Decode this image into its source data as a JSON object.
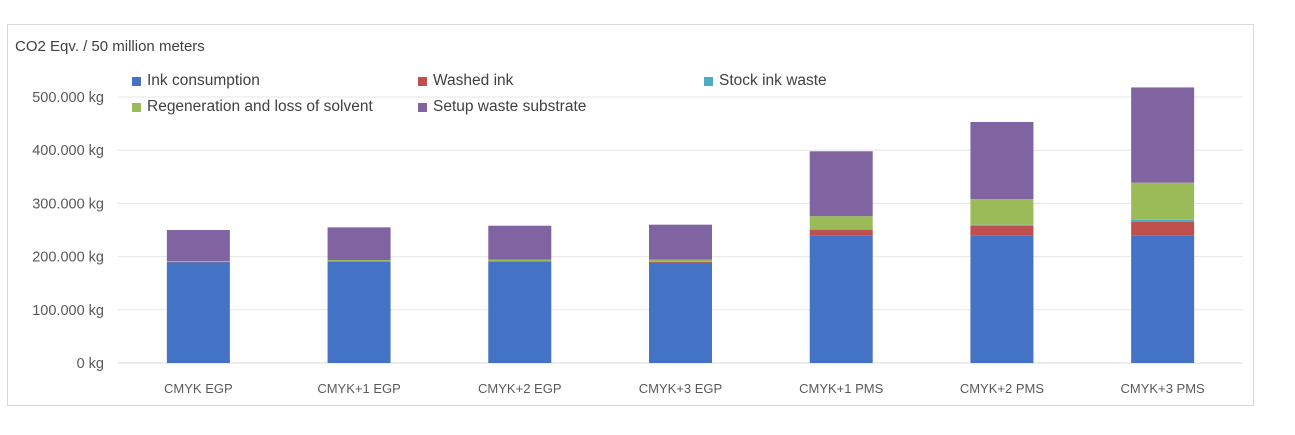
{
  "chart_data": {
    "type": "bar",
    "stacked": true,
    "ylabel": "CO2 Eqv. / 50 million meters",
    "ylim": [
      0,
      550000
    ],
    "yticks": [
      0,
      100000,
      200000,
      300000,
      400000,
      500000
    ],
    "ytick_labels": [
      "0 kg",
      "100.000 kg",
      "200.000 kg",
      "300.000 kg",
      "400.000 kg",
      "500.000 kg"
    ],
    "grid": true,
    "legend_position": "top",
    "categories": [
      "CMYK EGP",
      "CMYK+1 EGP",
      "CMYK+2 EGP",
      "CMYK+3 EGP",
      "CMYK+1 PMS",
      "CMYK+2 PMS",
      "CMYK+3 PMS"
    ],
    "series": [
      {
        "name": "Ink consumption",
        "color": "#4472c4",
        "values": [
          189000,
          190000,
          190000,
          188000,
          240000,
          240000,
          240000
        ]
      },
      {
        "name": "Washed ink",
        "color": "#c0504d",
        "values": [
          1000,
          1000,
          1000,
          2000,
          10000,
          18000,
          25000
        ]
      },
      {
        "name": "Stock ink waste",
        "color": "#4bacc6",
        "values": [
          500,
          500,
          500,
          500,
          1000,
          2000,
          4000
        ]
      },
      {
        "name": "Regeneration and loss of solvent",
        "color": "#9bbb59",
        "values": [
          1000,
          2000,
          3000,
          4000,
          25000,
          48000,
          70000
        ]
      },
      {
        "name": "Setup waste substrate",
        "color": "#8064a2",
        "values": [
          58500,
          61500,
          63500,
          65500,
          122000,
          145000,
          179000
        ]
      }
    ]
  }
}
